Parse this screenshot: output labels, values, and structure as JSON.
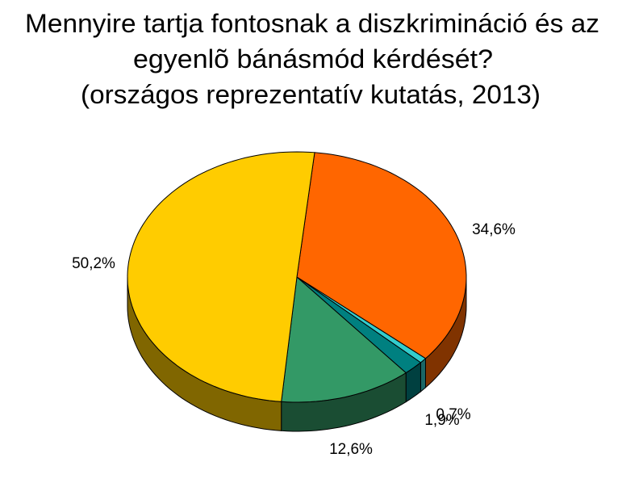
{
  "chart_data": {
    "type": "pie3d",
    "title": [
      "Mennyire tartja fontosnak a diszkrimináció és az",
      "egyenlõ bánásmód kérdését?",
      "(országos reprezentatív kutatás, 2013)"
    ],
    "values": [
      34.6,
      0.7,
      1.9,
      12.6,
      50.2
    ],
    "value_labels": [
      "34,6%",
      "0,7%",
      "1,9%",
      "12,6%",
      "50,2%"
    ],
    "colors": [
      "#ff6600",
      "#33cccc",
      "#008080",
      "#339966",
      "#ffcc00"
    ]
  }
}
